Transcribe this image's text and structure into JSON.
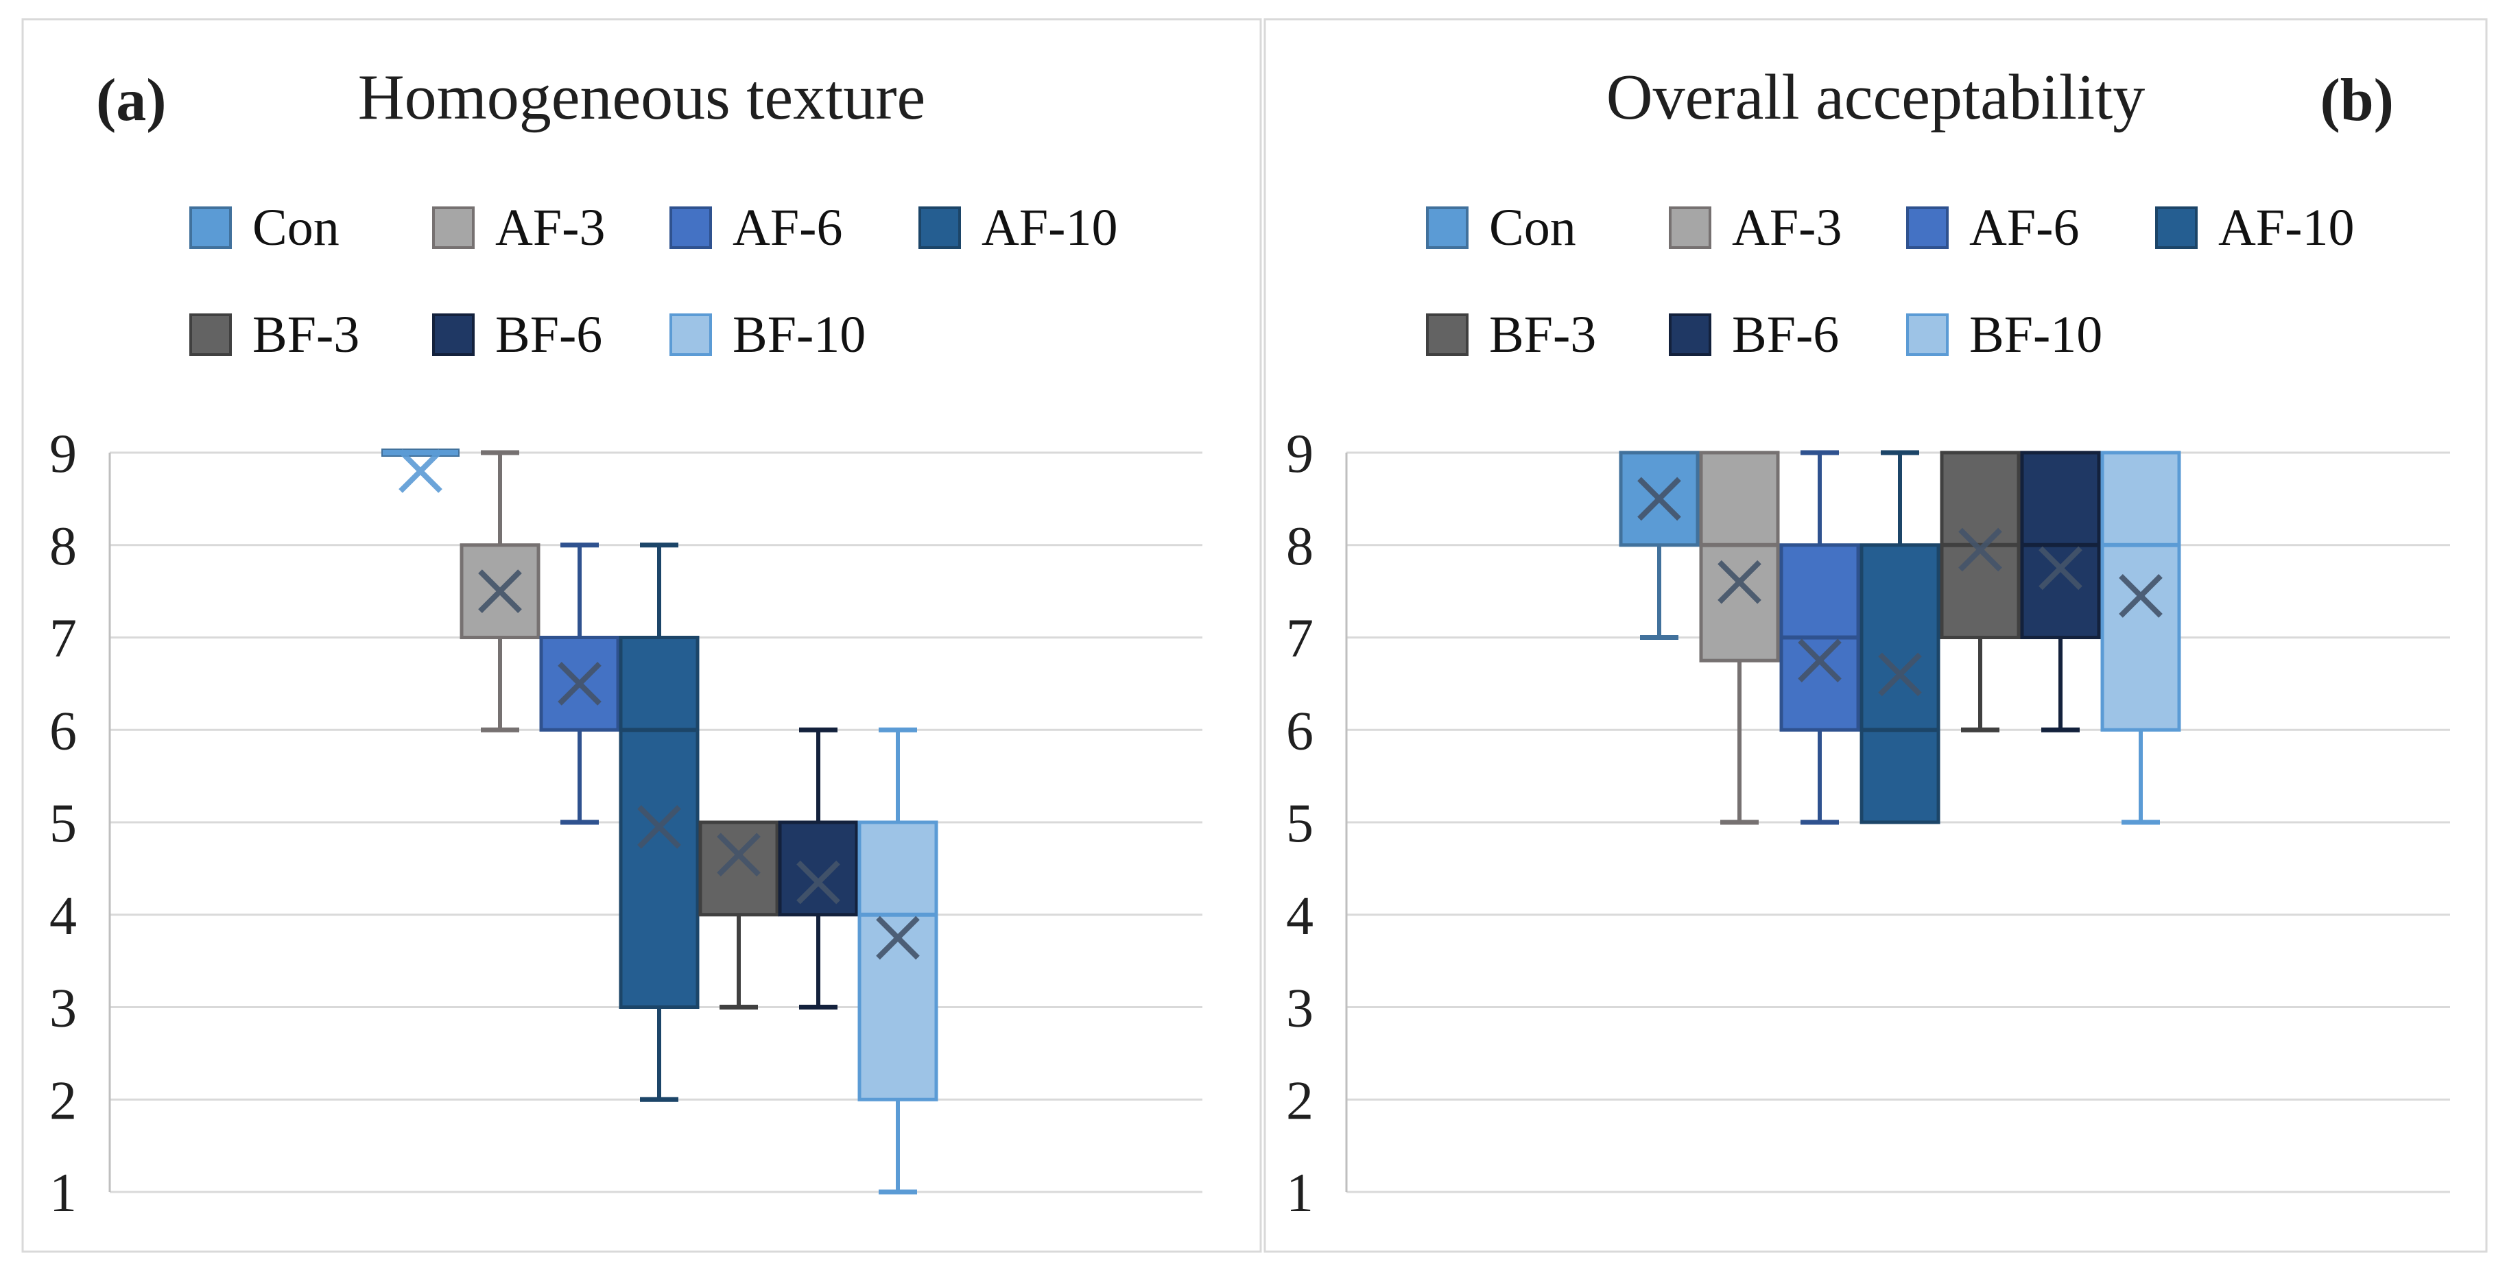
{
  "figure": {
    "background": "#FFFFFF",
    "border_color": "#D9D9D9",
    "grid_color": "#D9D9D9",
    "axis_color": "#BFBFBF",
    "text_color": "#1F1F1F",
    "mean_marker_color": "#44546A"
  },
  "panels": [
    {
      "corner_label": "(a)",
      "title": "Homogeneous texture",
      "chart_data": {
        "type": "boxplot",
        "title": "Homogeneous texture",
        "xlabel": "",
        "ylabel": "",
        "ylim": [
          1,
          9
        ],
        "yticks": [
          1,
          2,
          3,
          4,
          5,
          6,
          7,
          8,
          9
        ],
        "grid": true,
        "legend_position": "top",
        "legend_rows": [
          [
            "Con",
            "AF-3",
            "AF-6",
            "AF-10"
          ],
          [
            "BF-3",
            "BF-6",
            "BF-10"
          ]
        ],
        "series": [
          {
            "name": "Con",
            "fill": "#5B9BD5",
            "line": "#41719C",
            "whisker_low": 9,
            "q1": 9,
            "median": 9,
            "q3": 9,
            "whisker_high": 9,
            "mean": 8.8,
            "mean_color": "#5B9BD5"
          },
          {
            "name": "AF-3",
            "fill": "#A6A6A6",
            "line": "#767171",
            "whisker_low": 6,
            "q1": 7,
            "median": null,
            "q3": 8,
            "whisker_high": 9,
            "mean": 7.5
          },
          {
            "name": "AF-6",
            "fill": "#4472C4",
            "line": "#2F528F",
            "whisker_low": 5,
            "q1": 6,
            "median": null,
            "q3": 7,
            "whisker_high": 8,
            "mean": 6.5
          },
          {
            "name": "AF-10",
            "fill": "#255E91",
            "line": "#1C4568",
            "whisker_low": 2,
            "q1": 3,
            "median": 6,
            "q3": 7,
            "whisker_high": 8,
            "mean": 4.95
          },
          {
            "name": "BF-3",
            "fill": "#636363",
            "line": "#404040",
            "whisker_low": 3,
            "q1": 4,
            "median": null,
            "q3": 5,
            "whisker_high": 5,
            "mean": 4.65
          },
          {
            "name": "BF-6",
            "fill": "#1F3864",
            "line": "#13213C",
            "whisker_low": 3,
            "q1": 4,
            "median": null,
            "q3": 5,
            "whisker_high": 6,
            "mean": 4.35
          },
          {
            "name": "BF-10",
            "fill": "#9DC3E6",
            "line": "#5B9BD5",
            "whisker_low": 1,
            "q1": 2,
            "median": 4,
            "q3": 5,
            "whisker_high": 6,
            "mean": 3.75
          }
        ]
      }
    },
    {
      "corner_label": "(b)",
      "title": "Overall acceptability",
      "chart_data": {
        "type": "boxplot",
        "title": "Overall acceptability",
        "xlabel": "",
        "ylabel": "",
        "ylim": [
          1,
          9
        ],
        "yticks": [
          1,
          2,
          3,
          4,
          5,
          6,
          7,
          8,
          9
        ],
        "grid": true,
        "legend_position": "top",
        "legend_rows": [
          [
            "Con",
            "AF-3",
            "AF-6",
            "AF-10"
          ],
          [
            "BF-3",
            "BF-6",
            "BF-10"
          ]
        ],
        "series": [
          {
            "name": "Con",
            "fill": "#5B9BD5",
            "line": "#41719C",
            "whisker_low": 7,
            "q1": 8,
            "median": null,
            "q3": 9,
            "whisker_high": 9,
            "mean": 8.5
          },
          {
            "name": "AF-3",
            "fill": "#A6A6A6",
            "line": "#767171",
            "whisker_low": 5,
            "q1": 6.75,
            "median": 8,
            "q3": 9,
            "whisker_high": 9,
            "mean": 7.6
          },
          {
            "name": "AF-6",
            "fill": "#4472C4",
            "line": "#2F528F",
            "whisker_low": 5,
            "q1": 6,
            "median": 7,
            "q3": 8,
            "whisker_high": 9,
            "mean": 6.75
          },
          {
            "name": "AF-10",
            "fill": "#255E91",
            "line": "#1C4568",
            "whisker_low": 5,
            "q1": 5,
            "median": 6,
            "q3": 8,
            "whisker_high": 9,
            "mean": 6.6
          },
          {
            "name": "BF-3",
            "fill": "#636363",
            "line": "#404040",
            "whisker_low": 6,
            "q1": 7,
            "median": 8,
            "q3": 9,
            "whisker_high": 9,
            "mean": 7.95
          },
          {
            "name": "BF-6",
            "fill": "#1F3864",
            "line": "#13213C",
            "whisker_low": 6,
            "q1": 7,
            "median": 8,
            "q3": 9,
            "whisker_high": 9,
            "mean": 7.75
          },
          {
            "name": "BF-10",
            "fill": "#9DC3E6",
            "line": "#5B9BD5",
            "whisker_low": 5,
            "q1": 6,
            "median": 8,
            "q3": 9,
            "whisker_high": 9,
            "mean": 7.45
          }
        ]
      }
    }
  ]
}
